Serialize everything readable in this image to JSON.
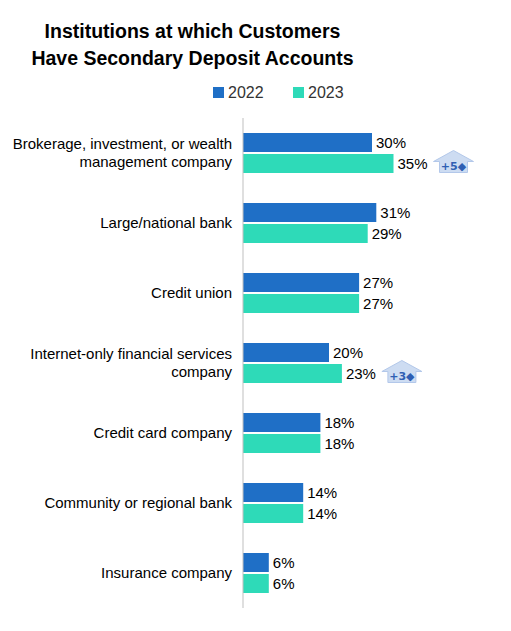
{
  "chart_data": {
    "type": "bar",
    "orientation": "horizontal",
    "title": "Institutions at which Customers Have Secondary Deposit Accounts",
    "categories": [
      "Brokerage, investment, or wealth management company",
      "Large/national bank",
      "Credit union",
      "Internet-only financial services company",
      "Credit card company",
      "Community or regional bank",
      "Insurance company"
    ],
    "series": [
      {
        "name": "2022",
        "color": "#1f6fc6",
        "values": [
          30,
          31,
          27,
          20,
          18,
          14,
          6
        ],
        "value_labels": [
          "30%",
          "31%",
          "27%",
          "20%",
          "18%",
          "14%",
          "6%"
        ]
      },
      {
        "name": "2023",
        "color": "#2edab8",
        "values": [
          35,
          29,
          27,
          23,
          18,
          14,
          6
        ],
        "value_labels": [
          "35%",
          "29%",
          "27%",
          "23%",
          "18%",
          "14%",
          "6%"
        ]
      }
    ],
    "annotations": [
      {
        "text": "+5◆",
        "category": 0,
        "series": 1
      },
      {
        "text": "+3◆",
        "category": 3,
        "series": 1
      }
    ],
    "ylim": [
      0,
      60
    ],
    "tick_labels": false,
    "grid": false,
    "legend": "top",
    "data_labels": true
  }
}
